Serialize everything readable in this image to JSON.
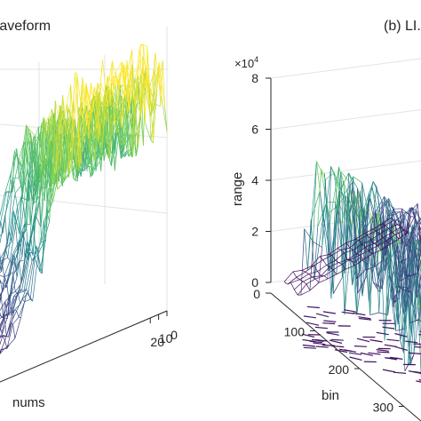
{
  "colormap": [
    "#440154",
    "#3b528b",
    "#21918c",
    "#5ec962",
    "#fde725"
  ],
  "chart_data": [
    {
      "type": "surface3d",
      "title": "(a) ...aveform",
      "xlabel": "nums",
      "x_ticks": [
        "0",
        "10",
        "20"
      ],
      "shape": "decaying peak near nums=0, noisy mesh",
      "z_peak": 1.0
    },
    {
      "type": "surface3d",
      "title": "(b) LI...",
      "exponent_label": "×10",
      "exponent_power": "4",
      "xlabel": "bin",
      "ylabel": "range",
      "z_ticks": [
        "0",
        "2",
        "4",
        "6",
        "8"
      ],
      "z_range": [
        0,
        80000
      ],
      "x_ticks": [
        "0",
        "100",
        "200",
        "300"
      ],
      "x_range": [
        0,
        320
      ],
      "plateau_level": 60000
    }
  ]
}
